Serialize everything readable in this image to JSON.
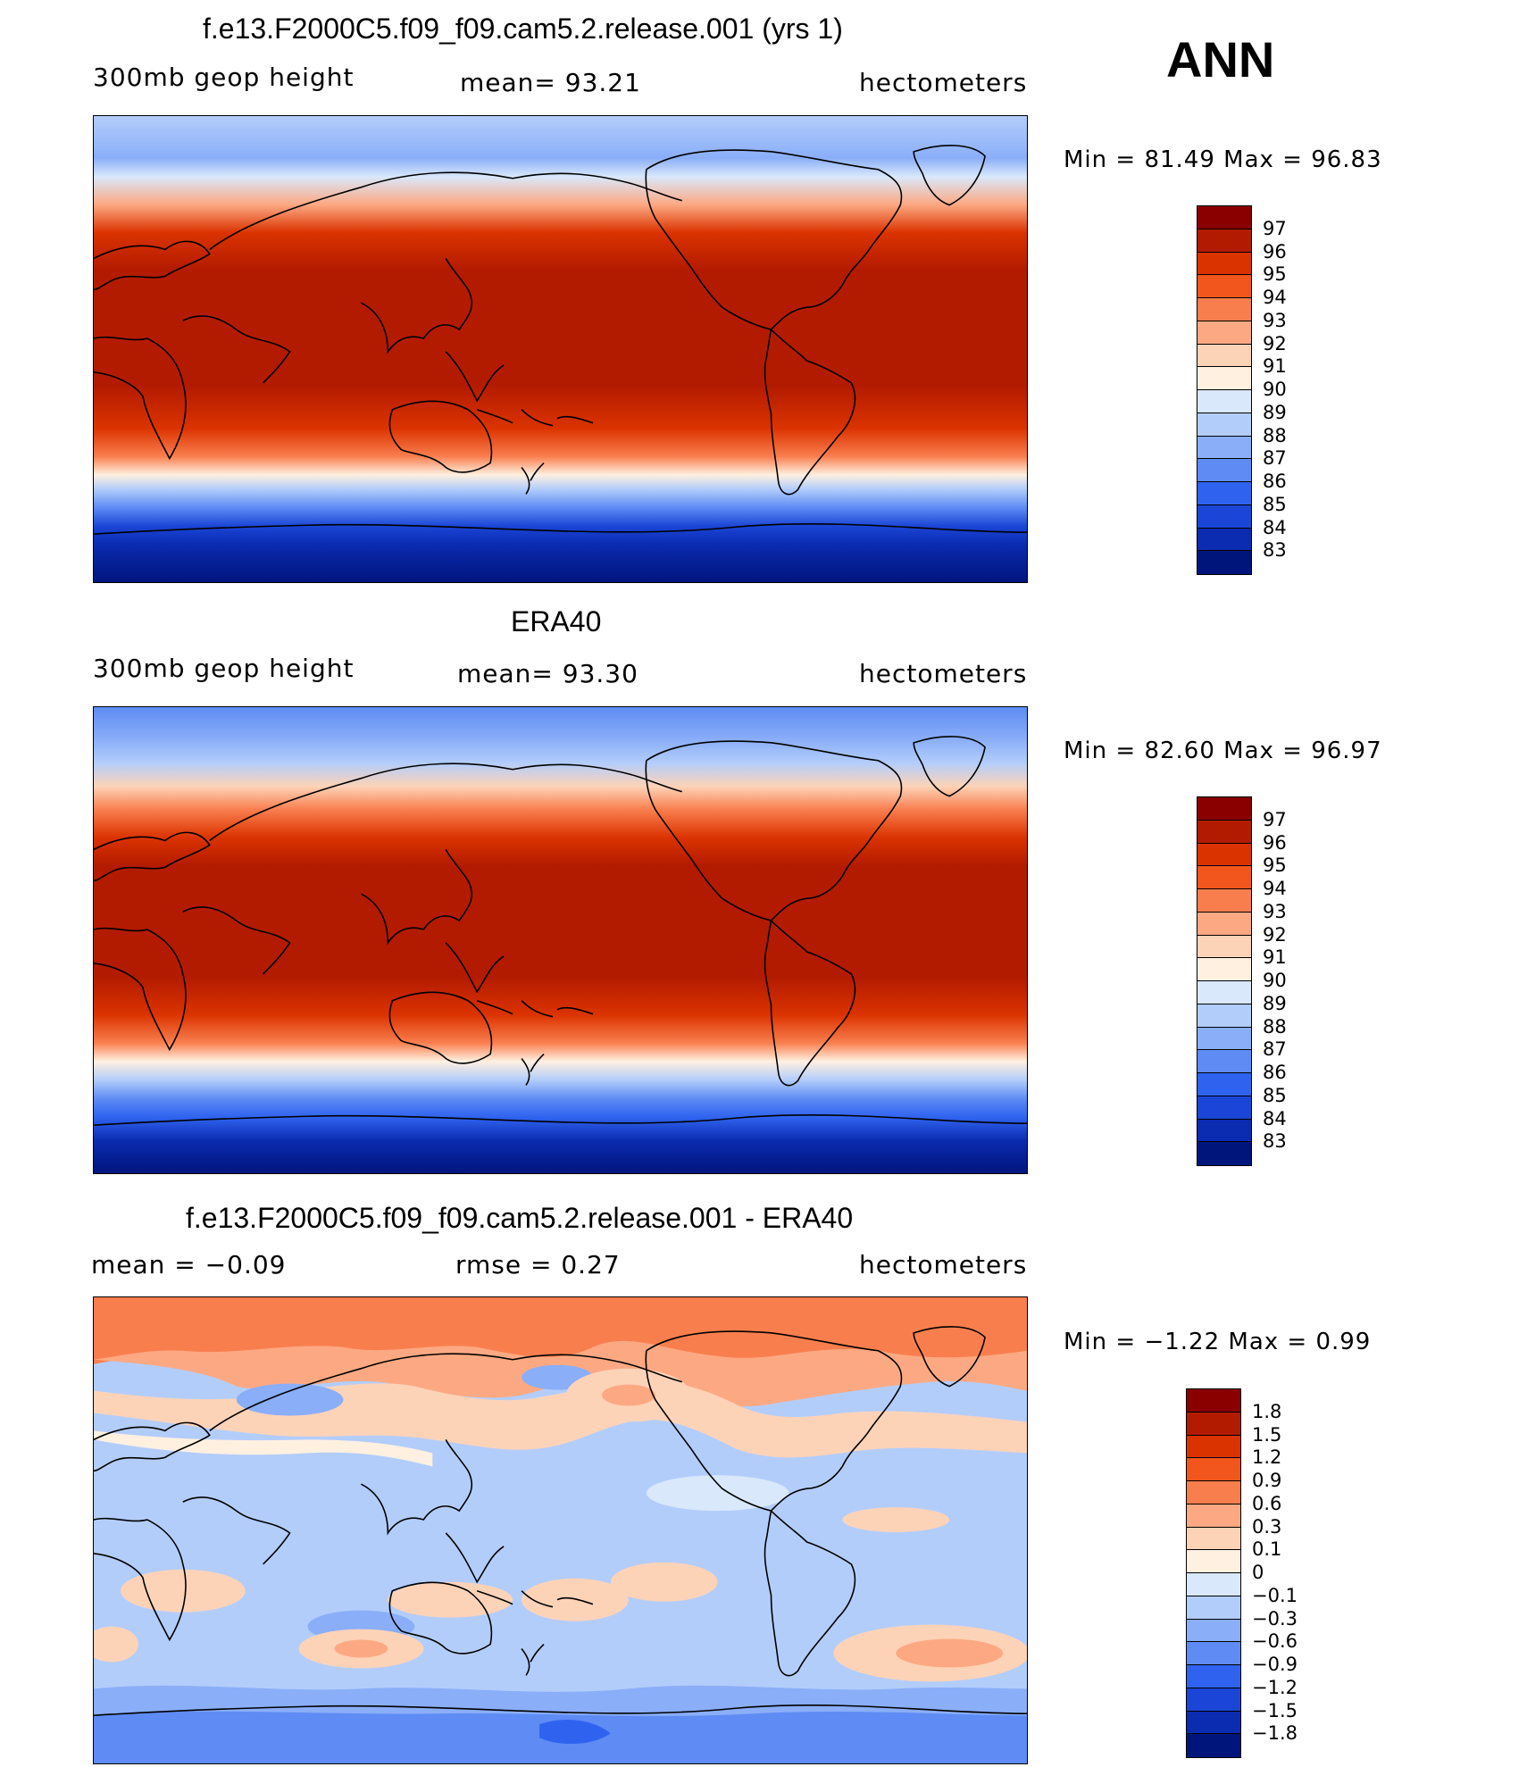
{
  "header": {
    "season": "ANN"
  },
  "panels": [
    {
      "title": "f.e13.F2000C5.f09_f09.cam5.2.release.001 (yrs 1)",
      "left_label": "300mb  geop  height",
      "center_label": "mean=   93.21",
      "right_label": "hectometers",
      "minmax": "Min  =    81.49  Max  =    96.83",
      "kind": "model",
      "colorbar": {
        "labels": [
          "97",
          "96",
          "95",
          "94",
          "93",
          "92",
          "91",
          "90",
          "89",
          "88",
          "87",
          "86",
          "85",
          "84",
          "83"
        ],
        "colors": [
          "#8a0000",
          "#b31b00",
          "#db3300",
          "#f2561c",
          "#f97e4e",
          "#fca983",
          "#fdd3b8",
          "#fff0e0",
          "#d9e8fb",
          "#b3cdfb",
          "#8aaef8",
          "#5e8cf4",
          "#2f63ef",
          "#1a45d6",
          "#0b2bb0",
          "#00157c"
        ]
      }
    },
    {
      "title": "ERA40",
      "left_label": "300mb  geop  height",
      "center_label": "mean=   93.30",
      "right_label": "hectometers",
      "minmax": "Min  =    82.60  Max  =    96.97",
      "kind": "obs",
      "colorbar": {
        "labels": [
          "97",
          "96",
          "95",
          "94",
          "93",
          "92",
          "91",
          "90",
          "89",
          "88",
          "87",
          "86",
          "85",
          "84",
          "83"
        ],
        "colors": [
          "#8a0000",
          "#b31b00",
          "#db3300",
          "#f2561c",
          "#f97e4e",
          "#fca983",
          "#fdd3b8",
          "#fff0e0",
          "#d9e8fb",
          "#b3cdfb",
          "#8aaef8",
          "#5e8cf4",
          "#2f63ef",
          "#1a45d6",
          "#0b2bb0",
          "#00157c"
        ]
      }
    },
    {
      "title": "f.e13.F2000C5.f09_f09.cam5.2.release.001 - ERA40",
      "left_label": "mean  =    −0.09",
      "center_label": "rmse  =     0.27",
      "right_label": "hectometers",
      "minmax": "Min  =    −1.22  Max  =      0.99",
      "kind": "diff",
      "colorbar": {
        "labels": [
          "1.8",
          "1.5",
          "1.2",
          "0.9",
          "0.6",
          "0.3",
          "0.1",
          "0",
          "−0.1",
          "−0.3",
          "−0.6",
          "−0.9",
          "−1.2",
          "−1.5",
          "−1.8"
        ],
        "colors": [
          "#8a0000",
          "#b31b00",
          "#db3300",
          "#f2561c",
          "#f97e4e",
          "#fca983",
          "#fdd3b8",
          "#fff0e0",
          "#d9e8fb",
          "#b3cdfb",
          "#8aaef8",
          "#5e8cf4",
          "#2f63ef",
          "#1a45d6",
          "#0b2bb0",
          "#00157c"
        ]
      }
    }
  ]
}
